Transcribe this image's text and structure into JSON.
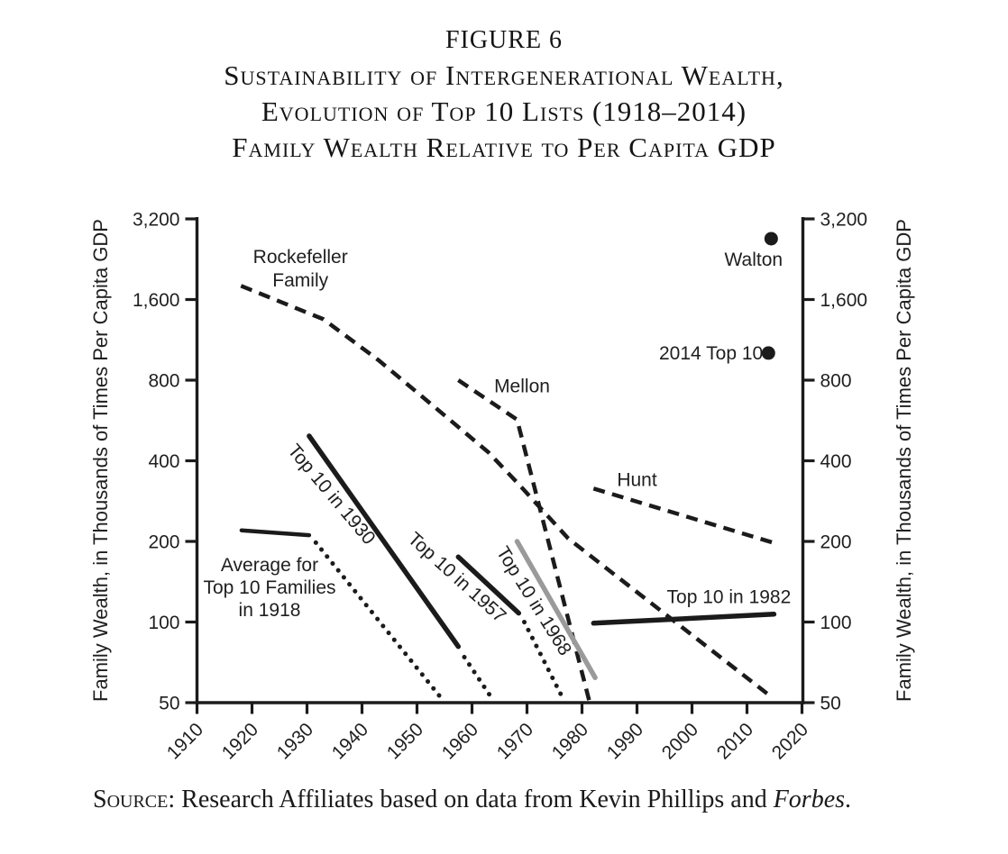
{
  "figure": {
    "label": "FIGURE 6",
    "title_lines": [
      "Sustainability of Intergenerational Wealth,",
      "Evolution of Top 10 Lists (1918–2014)",
      "Family Wealth Relative to Per Capita GDP"
    ]
  },
  "source": {
    "prefix": "Source:",
    "text": " Research Affiliates based on data from Kevin Phillips and ",
    "emphasis": "Forbes",
    "suffix": "."
  },
  "colors": {
    "ink": "#1b1b1b",
    "gray_line": "#9a9a9a",
    "text": "#1f1f1f"
  },
  "chart_data": {
    "type": "line",
    "title": "Family Wealth Relative to Per Capita GDP",
    "x_axis": {
      "range": [
        1910,
        2020
      ],
      "ticks": [
        1910,
        1920,
        1930,
        1940,
        1950,
        1960,
        1970,
        1980,
        1990,
        2000,
        2010,
        2020
      ],
      "tick_labels": [
        "1910",
        "1920",
        "1930",
        "1940",
        "1950",
        "1960",
        "1970",
        "1980",
        "1990",
        "2000",
        "2010",
        "2020"
      ],
      "tick_label_rotation": -45
    },
    "y_axis": {
      "label": "Family Wealth, in Thousands of Times Per Capita GDP",
      "scale": "log2",
      "range": [
        50,
        3200
      ],
      "ticks": [
        50,
        100,
        200,
        400,
        800,
        1600,
        3200
      ],
      "tick_labels": [
        "50",
        "100",
        "200",
        "400",
        "800",
        "1,600",
        "3,200"
      ],
      "mirrored_right": true
    },
    "grid": false,
    "legend": "inline-annotations",
    "series": [
      {
        "id": "rockefeller",
        "name": "Rockefeller Family",
        "style": "dashed",
        "color": "#1b1b1b",
        "width": 4.5,
        "points": [
          [
            1918,
            1800
          ],
          [
            1933,
            1350
          ],
          [
            1943,
            950
          ],
          [
            1953,
            640
          ],
          [
            1963,
            430
          ],
          [
            1968.5,
            327
          ],
          [
            1977.5,
            205
          ],
          [
            2014.7,
            52
          ]
        ]
      },
      {
        "id": "mellon",
        "name": "Mellon",
        "style": "dashed",
        "color": "#1b1b1b",
        "width": 4.5,
        "points": [
          [
            1957.5,
            800
          ],
          [
            1968.2,
            570
          ],
          [
            1981.3,
            51
          ]
        ]
      },
      {
        "id": "hunt",
        "name": "Hunt",
        "style": "dashed",
        "color": "#1b1b1b",
        "width": 4.5,
        "points": [
          [
            1982.1,
            315
          ],
          [
            2014.7,
            198
          ]
        ]
      },
      {
        "id": "avg-1918-solid",
        "name": "Average for Top 10 Families in 1918",
        "style": "solid",
        "color": "#1b1b1b",
        "width": 4.5,
        "points": [
          [
            1918.1,
            220
          ],
          [
            1930.4,
            211
          ]
        ]
      },
      {
        "id": "avg-1918-dotted",
        "name": "Average for Top 10 Families in 1918 (projection)",
        "style": "dotted",
        "color": "#1b1b1b",
        "width": 5,
        "points": [
          [
            1931.6,
            198
          ],
          [
            1954.9,
            50.5
          ]
        ]
      },
      {
        "id": "top10-1930-solid",
        "name": "Top 10 in 1930",
        "style": "solid",
        "color": "#1b1b1b",
        "width": 5.5,
        "points": [
          [
            1930.4,
            495
          ],
          [
            1957.5,
            81
          ]
        ]
      },
      {
        "id": "top10-1930-dotted",
        "name": "Top 10 in 1930 (tail)",
        "style": "dotted",
        "color": "#1b1b1b",
        "width": 5,
        "points": [
          [
            1958.6,
            74
          ],
          [
            1964,
            50.5
          ]
        ]
      },
      {
        "id": "top10-1957-solid",
        "name": "Top 10 in 1957",
        "style": "solid",
        "color": "#1b1b1b",
        "width": 5.5,
        "points": [
          [
            1957.5,
            175
          ],
          [
            1968.5,
            108
          ]
        ]
      },
      {
        "id": "top10-1957-dotted",
        "name": "Top 10 in 1957 (tail)",
        "style": "dotted",
        "color": "#1b1b1b",
        "width": 5,
        "points": [
          [
            1969.5,
            100
          ],
          [
            1976.7,
            51
          ]
        ]
      },
      {
        "id": "top10-1968",
        "name": "Top 10 in 1968",
        "style": "solid",
        "color": "#9a9a9a",
        "width": 5.5,
        "points": [
          [
            1968.2,
            200
          ],
          [
            1982.4,
            62
          ]
        ]
      },
      {
        "id": "top10-1982",
        "name": "Top 10 in 1982",
        "style": "solid",
        "color": "#1b1b1b",
        "width": 5.5,
        "points": [
          [
            1982.1,
            99
          ],
          [
            2014.9,
            107
          ]
        ]
      },
      {
        "id": "walton",
        "name": "Walton",
        "style": "point",
        "color": "#1b1b1b",
        "radius": 7.5,
        "points": [
          [
            2014.4,
            2700
          ]
        ]
      },
      {
        "id": "top10-2014",
        "name": "2014 Top 10",
        "style": "point",
        "color": "#1b1b1b",
        "radius": 7.5,
        "points": [
          [
            2013.9,
            1010
          ]
        ]
      }
    ],
    "annotations": [
      {
        "id": "rockefeller-label",
        "lines": [
          "Rockefeller",
          "Family"
        ],
        "year": 1928.8,
        "value": 2090,
        "rotation": 0,
        "align": "center",
        "line_height": 26
      },
      {
        "id": "mellon-label",
        "lines": [
          "Mellon"
        ],
        "year": 1969.1,
        "value": 760,
        "rotation": 0,
        "align": "center",
        "line_height": 26
      },
      {
        "id": "hunt-label",
        "lines": [
          "Hunt"
        ],
        "year": 1990,
        "value": 340,
        "rotation": 0,
        "align": "center",
        "line_height": 26
      },
      {
        "id": "top10-1982-label",
        "lines": [
          "Top 10 in 1982"
        ],
        "year": 2006.7,
        "value": 124,
        "rotation": 0,
        "align": "center",
        "line_height": 26
      },
      {
        "id": "walton-label",
        "lines": [
          "Walton"
        ],
        "year": 2011.2,
        "value": 2260,
        "rotation": 0,
        "align": "center",
        "line_height": 26
      },
      {
        "id": "top10-2014-label",
        "lines": [
          "2014 Top 10"
        ],
        "year": 2012.9,
        "value": 1010,
        "rotation": 0,
        "align": "right",
        "line_height": 26
      },
      {
        "id": "avg-1918-label",
        "lines": [
          "Average for",
          "Top 10 Families",
          "in 1918"
        ],
        "year": 1923.2,
        "value": 135,
        "rotation": 0,
        "align": "center",
        "line_height": 25
      },
      {
        "id": "top10-1930-label",
        "lines": [
          "Top 10 in 1930"
        ],
        "year": 1934.5,
        "value": 300,
        "rotation": 50,
        "align": "center",
        "line_height": 26
      },
      {
        "id": "top10-1957-label",
        "lines": [
          "Top 10 in 1957"
        ],
        "year": 1957.3,
        "value": 147,
        "rotation": 42,
        "align": "center",
        "line_height": 26
      },
      {
        "id": "top10-1968-label",
        "lines": [
          "Top 10 in 1968"
        ],
        "year": 1971.3,
        "value": 120,
        "rotation": 58,
        "align": "center",
        "line_height": 26
      }
    ]
  }
}
